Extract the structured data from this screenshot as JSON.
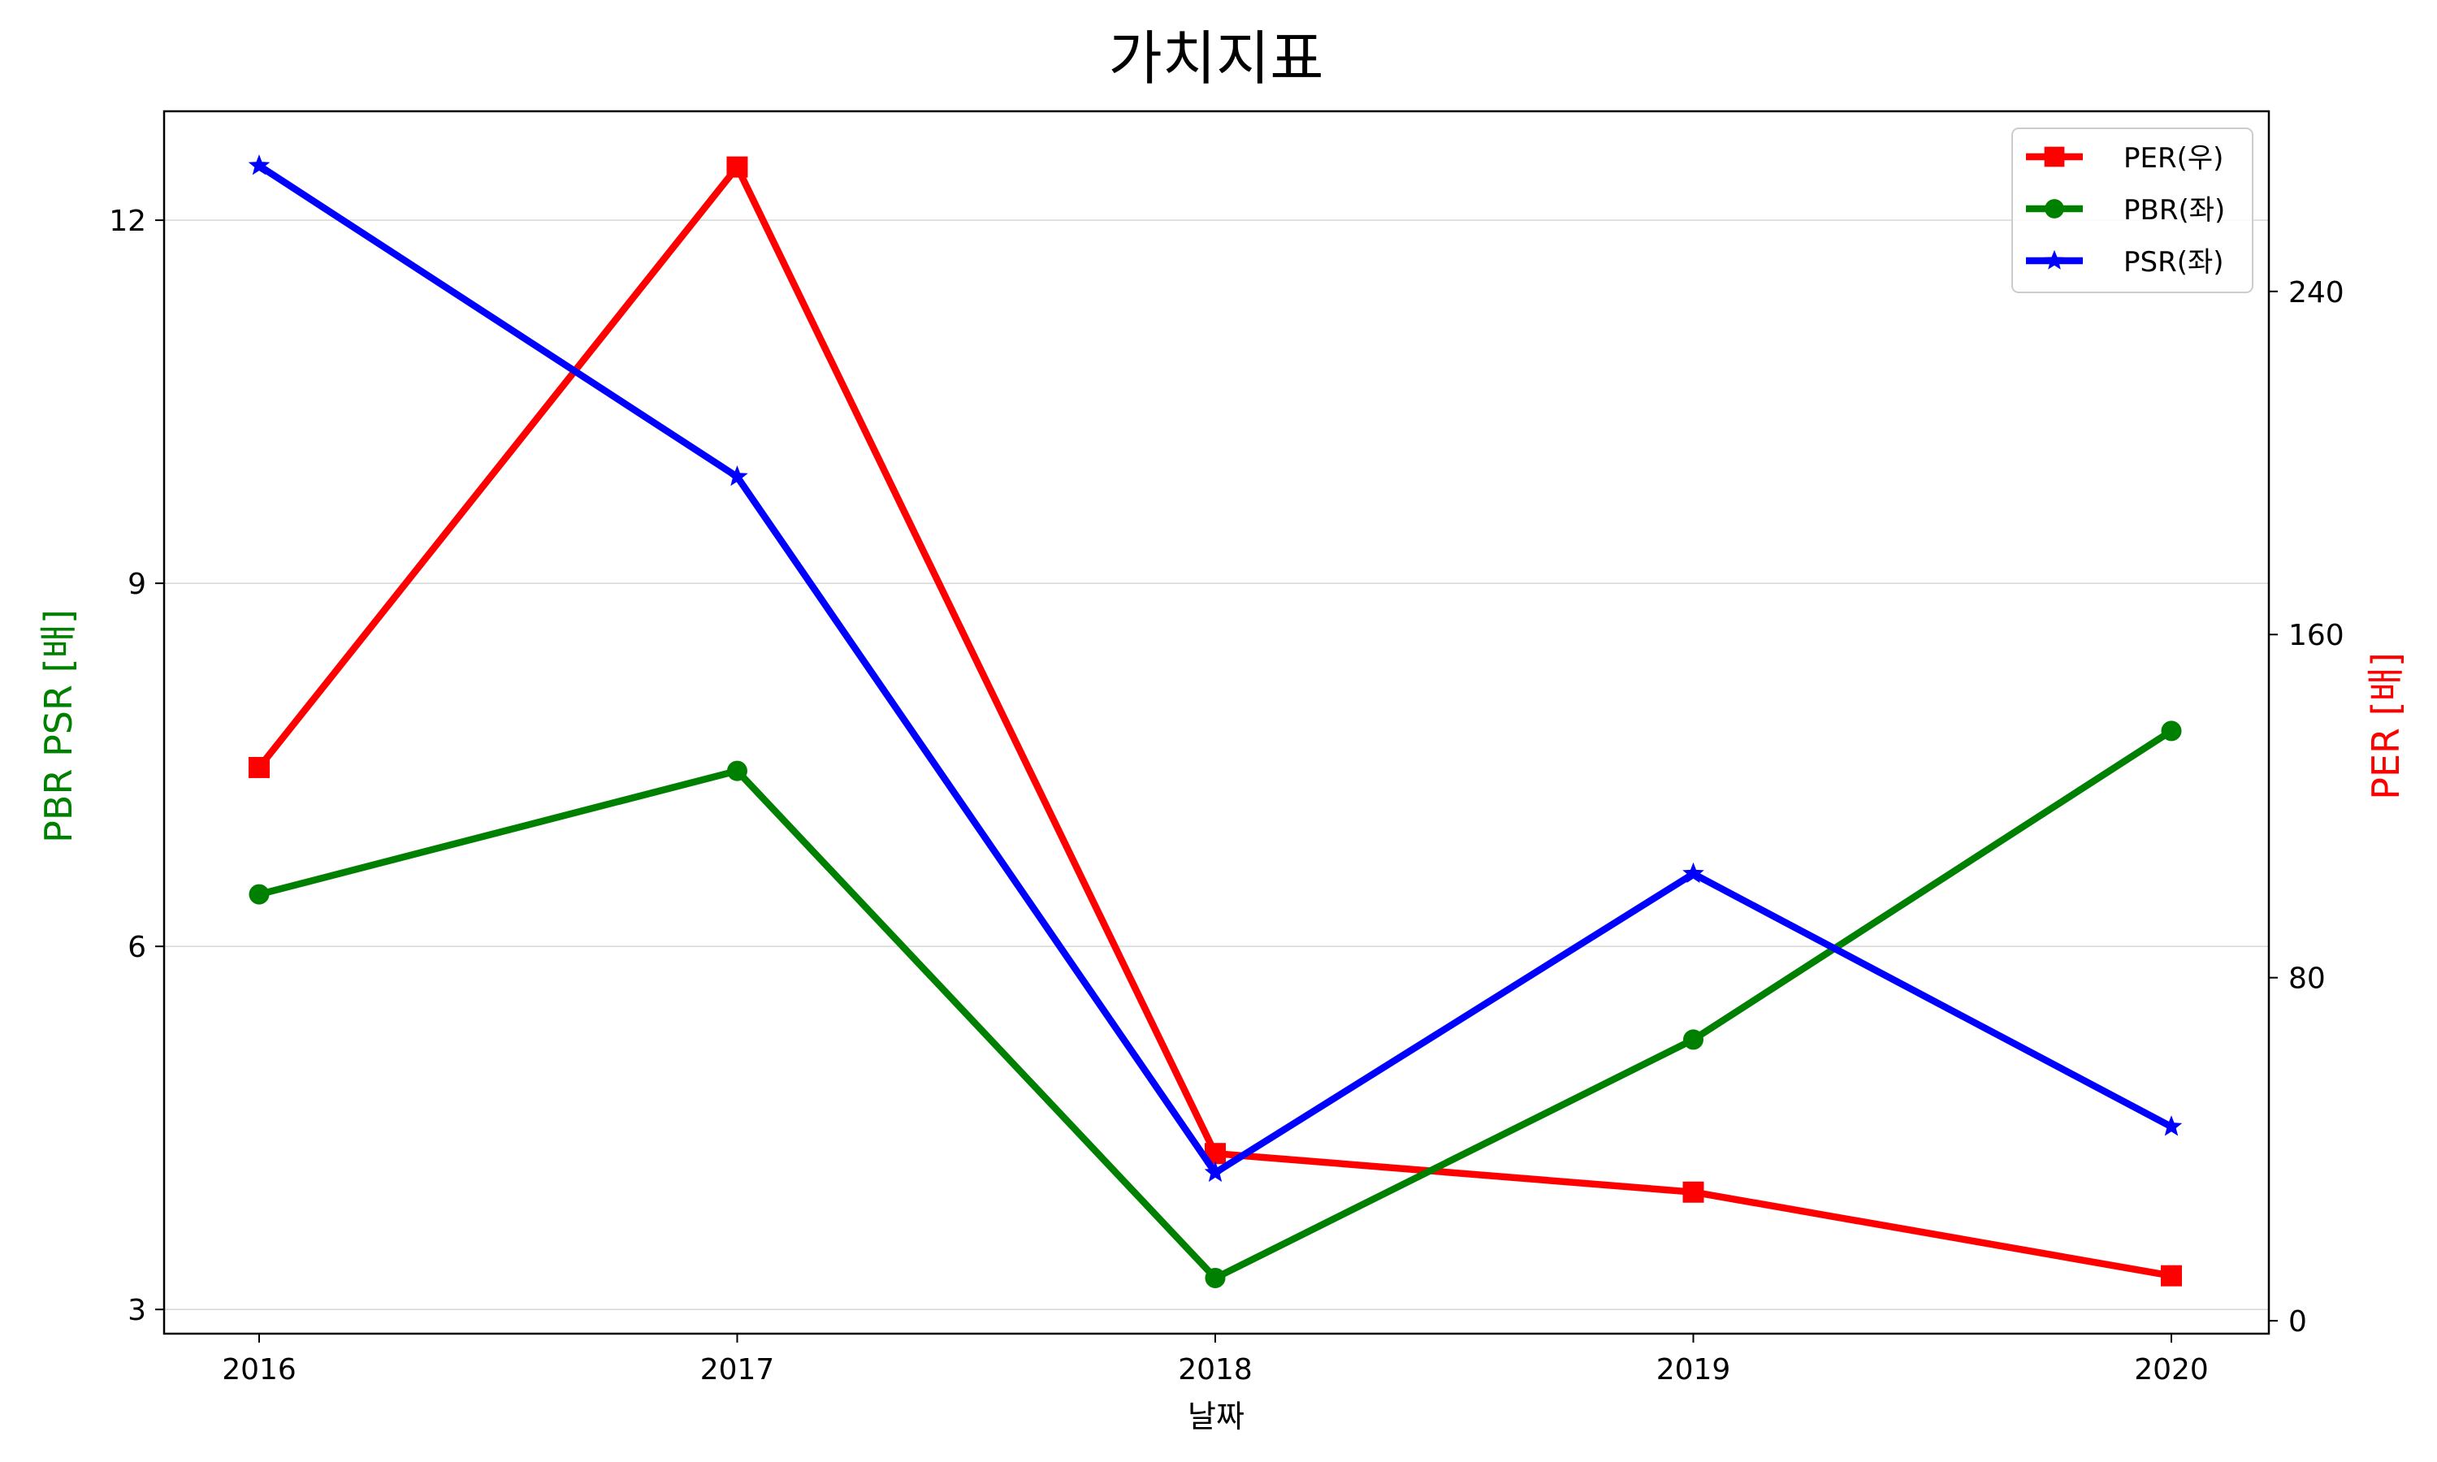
{
  "chart_data": {
    "type": "line",
    "title": "가치지표",
    "xlabel": "날짜",
    "ylabel_left": "PBR PSR [배]",
    "ylabel_right": "PER [배]",
    "categories": [
      "2016",
      "2017",
      "2018",
      "2019",
      "2020"
    ],
    "left_axis": {
      "ylim": [
        2.8,
        12.9
      ],
      "ticks": [
        3,
        6,
        9,
        12
      ],
      "tick_labels": [
        "3",
        "6",
        "9",
        "12"
      ]
    },
    "right_axis": {
      "ylim": [
        -3,
        282
      ],
      "ticks": [
        0,
        80,
        160,
        240
      ],
      "tick_labels": [
        "0",
        "80",
        "160",
        "240"
      ]
    },
    "grid": "horizontal",
    "legend_position": "top-right",
    "series": [
      {
        "name": "PER(우)",
        "axis": "right",
        "color": "#ff0000",
        "marker": "square",
        "values": [
          129,
          269,
          39,
          30,
          10.5
        ]
      },
      {
        "name": "PBR(좌)",
        "axis": "left",
        "color": "#008000",
        "marker": "circle",
        "values": [
          6.43,
          7.45,
          3.26,
          5.23,
          7.78
        ]
      },
      {
        "name": "PSR(좌)",
        "axis": "left",
        "color": "#0000ff",
        "marker": "star",
        "values": [
          12.45,
          9.88,
          4.13,
          6.6,
          4.51
        ]
      }
    ]
  }
}
